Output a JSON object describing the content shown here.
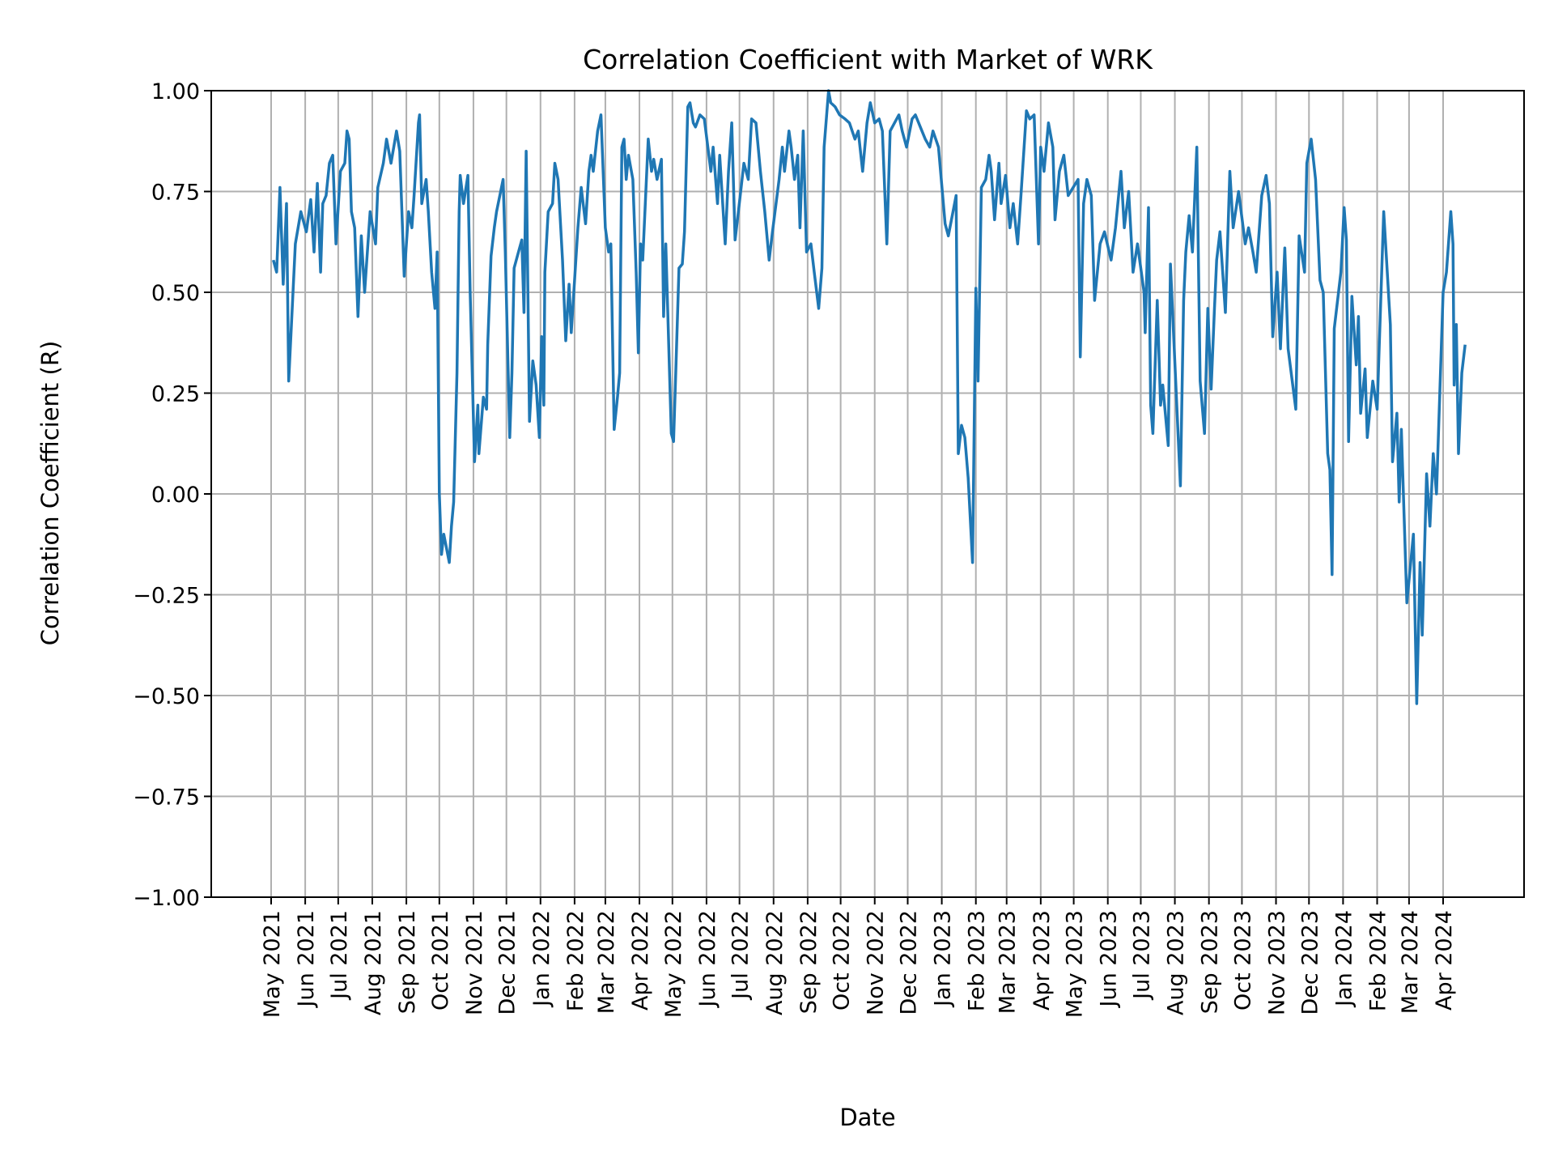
{
  "chart_data": {
    "type": "line",
    "title": "Correlation Coefficient with Market of WRK",
    "xlabel": "Date",
    "ylabel": "Correlation Coefficient (R)",
    "ylim": [
      -1.0,
      1.0
    ],
    "xlim": [
      "2021-04-01",
      "2024-05-31"
    ],
    "grid": true,
    "line_color": "#1f77b4",
    "yticks": [
      "−1.00",
      "−0.75",
      "−0.50",
      "−0.25",
      "0.00",
      "0.25",
      "0.50",
      "0.75",
      "1.00"
    ],
    "ytick_values": [
      -1,
      -0.75,
      -0.5,
      -0.25,
      0,
      0.25,
      0.5,
      0.75,
      1
    ],
    "xticks": [
      "May 2021",
      "Jun 2021",
      "Jul 2021",
      "Aug 2021",
      "Sep 2021",
      "Oct 2021",
      "Nov 2021",
      "Dec 2021",
      "Jan 2022",
      "Feb 2022",
      "Mar 2022",
      "Apr 2022",
      "May 2022",
      "Jun 2022",
      "Jul 2022",
      "Aug 2022",
      "Sep 2022",
      "Oct 2022",
      "Nov 2022",
      "Dec 2022",
      "Jan 2023",
      "Feb 2023",
      "Mar 2023",
      "Apr 2023",
      "May 2023",
      "Jun 2023",
      "Jul 2023",
      "Aug 2023",
      "Sep 2023",
      "Oct 2023",
      "Nov 2023",
      "Dec 2023",
      "Jan 2024",
      "Feb 2024",
      "Mar 2024",
      "Apr 2024"
    ],
    "points": [
      [
        "2021-05-03",
        0.58
      ],
      [
        "2021-05-06",
        0.55
      ],
      [
        "2021-05-09",
        0.76
      ],
      [
        "2021-05-12",
        0.52
      ],
      [
        "2021-05-15",
        0.72
      ],
      [
        "2021-05-17",
        0.28
      ],
      [
        "2021-05-23",
        0.62
      ],
      [
        "2021-05-28",
        0.7
      ],
      [
        "2021-06-02",
        0.65
      ],
      [
        "2021-06-06",
        0.73
      ],
      [
        "2021-06-09",
        0.6
      ],
      [
        "2021-06-12",
        0.77
      ],
      [
        "2021-06-15",
        0.55
      ],
      [
        "2021-06-17",
        0.72
      ],
      [
        "2021-06-20",
        0.74
      ],
      [
        "2021-06-23",
        0.82
      ],
      [
        "2021-06-26",
        0.84
      ],
      [
        "2021-06-29",
        0.62
      ],
      [
        "2021-07-03",
        0.8
      ],
      [
        "2021-07-07",
        0.82
      ],
      [
        "2021-07-09",
        0.9
      ],
      [
        "2021-07-11",
        0.88
      ],
      [
        "2021-07-13",
        0.7
      ],
      [
        "2021-07-16",
        0.66
      ],
      [
        "2021-07-19",
        0.44
      ],
      [
        "2021-07-22",
        0.64
      ],
      [
        "2021-07-25",
        0.5
      ],
      [
        "2021-07-27",
        0.58
      ],
      [
        "2021-07-30",
        0.7
      ],
      [
        "2021-08-04",
        0.62
      ],
      [
        "2021-08-06",
        0.76
      ],
      [
        "2021-08-11",
        0.82
      ],
      [
        "2021-08-14",
        0.88
      ],
      [
        "2021-08-18",
        0.82
      ],
      [
        "2021-08-23",
        0.9
      ],
      [
        "2021-08-26",
        0.85
      ],
      [
        "2021-08-30",
        0.54
      ],
      [
        "2021-09-03",
        0.7
      ],
      [
        "2021-09-06",
        0.66
      ],
      [
        "2021-09-08",
        0.74
      ],
      [
        "2021-09-12",
        0.92
      ],
      [
        "2021-09-13",
        0.94
      ],
      [
        "2021-09-15",
        0.72
      ],
      [
        "2021-09-19",
        0.78
      ],
      [
        "2021-09-21",
        0.7
      ],
      [
        "2021-09-24",
        0.55
      ],
      [
        "2021-09-27",
        0.46
      ],
      [
        "2021-09-29",
        0.6
      ],
      [
        "2021-10-01",
        0.0
      ],
      [
        "2021-10-03",
        -0.15
      ],
      [
        "2021-10-05",
        -0.1
      ],
      [
        "2021-10-10",
        -0.17
      ],
      [
        "2021-10-12",
        -0.08
      ],
      [
        "2021-10-14",
        -0.02
      ],
      [
        "2021-10-17",
        0.3
      ],
      [
        "2021-10-19",
        0.7
      ],
      [
        "2021-10-20",
        0.79
      ],
      [
        "2021-10-23",
        0.72
      ],
      [
        "2021-10-27",
        0.79
      ],
      [
        "2021-10-29",
        0.5
      ],
      [
        "2021-11-02",
        0.08
      ],
      [
        "2021-11-05",
        0.22
      ],
      [
        "2021-11-06",
        0.1
      ],
      [
        "2021-11-10",
        0.24
      ],
      [
        "2021-11-13",
        0.21
      ],
      [
        "2021-11-14",
        0.37
      ],
      [
        "2021-11-17",
        0.59
      ],
      [
        "2021-11-20",
        0.66
      ],
      [
        "2021-11-22",
        0.7
      ],
      [
        "2021-11-28",
        0.78
      ],
      [
        "2021-11-30",
        0.6
      ],
      [
        "2021-12-04",
        0.14
      ],
      [
        "2021-12-06",
        0.3
      ],
      [
        "2021-12-08",
        0.56
      ],
      [
        "2021-12-12",
        0.6
      ],
      [
        "2021-12-15",
        0.63
      ],
      [
        "2021-12-17",
        0.45
      ],
      [
        "2021-12-19",
        0.85
      ],
      [
        "2021-12-22",
        0.18
      ],
      [
        "2021-12-25",
        0.33
      ],
      [
        "2021-12-28",
        0.27
      ],
      [
        "2021-12-31",
        0.14
      ],
      [
        "2022-01-02",
        0.39
      ],
      [
        "2022-01-04",
        0.22
      ],
      [
        "2022-01-05",
        0.55
      ],
      [
        "2022-01-08",
        0.7
      ],
      [
        "2022-01-12",
        0.72
      ],
      [
        "2022-01-14",
        0.82
      ],
      [
        "2022-01-17",
        0.78
      ],
      [
        "2022-01-21",
        0.58
      ],
      [
        "2022-01-24",
        0.38
      ],
      [
        "2022-01-27",
        0.52
      ],
      [
        "2022-01-29",
        0.4
      ],
      [
        "2022-02-04",
        0.66
      ],
      [
        "2022-02-07",
        0.76
      ],
      [
        "2022-02-11",
        0.67
      ],
      [
        "2022-02-14",
        0.8
      ],
      [
        "2022-02-16",
        0.84
      ],
      [
        "2022-02-18",
        0.8
      ],
      [
        "2022-02-22",
        0.9
      ],
      [
        "2022-02-25",
        0.94
      ],
      [
        "2022-03-01",
        0.66
      ],
      [
        "2022-03-04",
        0.6
      ],
      [
        "2022-03-06",
        0.62
      ],
      [
        "2022-03-09",
        0.16
      ],
      [
        "2022-03-12",
        0.24
      ],
      [
        "2022-03-14",
        0.3
      ],
      [
        "2022-03-16",
        0.86
      ],
      [
        "2022-03-18",
        0.88
      ],
      [
        "2022-03-20",
        0.78
      ],
      [
        "2022-03-22",
        0.84
      ],
      [
        "2022-03-26",
        0.78
      ],
      [
        "2022-03-29",
        0.55
      ],
      [
        "2022-03-31",
        0.35
      ],
      [
        "2022-04-02",
        0.62
      ],
      [
        "2022-04-04",
        0.58
      ],
      [
        "2022-04-09",
        0.88
      ],
      [
        "2022-04-12",
        0.8
      ],
      [
        "2022-04-14",
        0.83
      ],
      [
        "2022-04-17",
        0.78
      ],
      [
        "2022-04-21",
        0.83
      ],
      [
        "2022-04-23",
        0.44
      ],
      [
        "2022-04-25",
        0.62
      ],
      [
        "2022-04-30",
        0.15
      ],
      [
        "2022-05-02",
        0.13
      ],
      [
        "2022-05-04",
        0.3
      ],
      [
        "2022-05-07",
        0.56
      ],
      [
        "2022-05-10",
        0.57
      ],
      [
        "2022-05-12",
        0.65
      ],
      [
        "2022-05-15",
        0.96
      ],
      [
        "2022-05-17",
        0.97
      ],
      [
        "2022-05-20",
        0.92
      ],
      [
        "2022-05-22",
        0.91
      ],
      [
        "2022-05-26",
        0.94
      ],
      [
        "2022-05-30",
        0.93
      ],
      [
        "2022-06-05",
        0.8
      ],
      [
        "2022-06-07",
        0.86
      ],
      [
        "2022-06-11",
        0.72
      ],
      [
        "2022-06-13",
        0.84
      ],
      [
        "2022-06-18",
        0.62
      ],
      [
        "2022-06-21",
        0.8
      ],
      [
        "2022-06-24",
        0.92
      ],
      [
        "2022-06-27",
        0.63
      ],
      [
        "2022-06-30",
        0.7
      ],
      [
        "2022-07-05",
        0.82
      ],
      [
        "2022-07-09",
        0.78
      ],
      [
        "2022-07-12",
        0.93
      ],
      [
        "2022-07-16",
        0.92
      ],
      [
        "2022-07-20",
        0.8
      ],
      [
        "2022-07-24",
        0.7
      ],
      [
        "2022-07-28",
        0.58
      ],
      [
        "2022-07-31",
        0.65
      ],
      [
        "2022-08-06",
        0.78
      ],
      [
        "2022-08-09",
        0.86
      ],
      [
        "2022-08-11",
        0.8
      ],
      [
        "2022-08-15",
        0.9
      ],
      [
        "2022-08-17",
        0.86
      ],
      [
        "2022-08-20",
        0.78
      ],
      [
        "2022-08-23",
        0.84
      ],
      [
        "2022-08-25",
        0.66
      ],
      [
        "2022-08-28",
        0.9
      ],
      [
        "2022-08-31",
        0.6
      ],
      [
        "2022-09-04",
        0.62
      ],
      [
        "2022-09-07",
        0.55
      ],
      [
        "2022-09-11",
        0.46
      ],
      [
        "2022-09-14",
        0.56
      ],
      [
        "2022-09-16",
        0.86
      ],
      [
        "2022-09-20",
        1.0
      ],
      [
        "2022-09-22",
        0.97
      ],
      [
        "2022-09-26",
        0.96
      ],
      [
        "2022-09-30",
        0.94
      ],
      [
        "2022-10-05",
        0.93
      ],
      [
        "2022-10-09",
        0.92
      ],
      [
        "2022-10-14",
        0.88
      ],
      [
        "2022-10-17",
        0.9
      ],
      [
        "2022-10-21",
        0.8
      ],
      [
        "2022-10-25",
        0.92
      ],
      [
        "2022-10-28",
        0.97
      ],
      [
        "2022-11-01",
        0.92
      ],
      [
        "2022-11-05",
        0.93
      ],
      [
        "2022-11-08",
        0.9
      ],
      [
        "2022-11-12",
        0.62
      ],
      [
        "2022-11-15",
        0.9
      ],
      [
        "2022-11-19",
        0.92
      ],
      [
        "2022-11-23",
        0.94
      ],
      [
        "2022-11-26",
        0.9
      ],
      [
        "2022-11-30",
        0.86
      ],
      [
        "2022-12-05",
        0.93
      ],
      [
        "2022-12-08",
        0.94
      ],
      [
        "2022-12-14",
        0.9
      ],
      [
        "2022-12-17",
        0.88
      ],
      [
        "2022-12-21",
        0.86
      ],
      [
        "2022-12-24",
        0.9
      ],
      [
        "2022-12-29",
        0.86
      ],
      [
        "2023-01-04",
        0.67
      ],
      [
        "2023-01-07",
        0.64
      ],
      [
        "2023-01-14",
        0.74
      ],
      [
        "2023-01-16",
        0.1
      ],
      [
        "2023-01-19",
        0.17
      ],
      [
        "2023-01-22",
        0.14
      ],
      [
        "2023-01-25",
        0.04
      ],
      [
        "2023-01-29",
        -0.17
      ],
      [
        "2023-02-01",
        0.51
      ],
      [
        "2023-02-03",
        0.28
      ],
      [
        "2023-02-06",
        0.76
      ],
      [
        "2023-02-10",
        0.78
      ],
      [
        "2023-02-13",
        0.84
      ],
      [
        "2023-02-15",
        0.8
      ],
      [
        "2023-02-18",
        0.68
      ],
      [
        "2023-02-22",
        0.82
      ],
      [
        "2023-02-24",
        0.72
      ],
      [
        "2023-02-28",
        0.79
      ],
      [
        "2023-03-04",
        0.66
      ],
      [
        "2023-03-07",
        0.72
      ],
      [
        "2023-03-11",
        0.62
      ],
      [
        "2023-03-14",
        0.74
      ],
      [
        "2023-03-19",
        0.95
      ],
      [
        "2023-03-22",
        0.93
      ],
      [
        "2023-03-26",
        0.94
      ],
      [
        "2023-03-30",
        0.62
      ],
      [
        "2023-04-01",
        0.86
      ],
      [
        "2023-04-04",
        0.8
      ],
      [
        "2023-04-08",
        0.92
      ],
      [
        "2023-04-12",
        0.86
      ],
      [
        "2023-04-14",
        0.68
      ],
      [
        "2023-04-18",
        0.8
      ],
      [
        "2023-04-22",
        0.84
      ],
      [
        "2023-04-26",
        0.74
      ],
      [
        "2023-05-05",
        0.78
      ],
      [
        "2023-05-07",
        0.34
      ],
      [
        "2023-05-10",
        0.72
      ],
      [
        "2023-05-13",
        0.78
      ],
      [
        "2023-05-17",
        0.74
      ],
      [
        "2023-05-20",
        0.48
      ],
      [
        "2023-05-25",
        0.62
      ],
      [
        "2023-05-29",
        0.65
      ],
      [
        "2023-06-04",
        0.58
      ],
      [
        "2023-06-08",
        0.66
      ],
      [
        "2023-06-13",
        0.8
      ],
      [
        "2023-06-16",
        0.66
      ],
      [
        "2023-06-20",
        0.75
      ],
      [
        "2023-06-24",
        0.55
      ],
      [
        "2023-06-28",
        0.62
      ],
      [
        "2023-07-04",
        0.5
      ],
      [
        "2023-07-05",
        0.4
      ],
      [
        "2023-07-08",
        0.71
      ],
      [
        "2023-07-10",
        0.22
      ],
      [
        "2023-07-12",
        0.15
      ],
      [
        "2023-07-16",
        0.48
      ],
      [
        "2023-07-19",
        0.22
      ],
      [
        "2023-07-21",
        0.27
      ],
      [
        "2023-07-26",
        0.12
      ],
      [
        "2023-07-28",
        0.57
      ],
      [
        "2023-08-06",
        0.02
      ],
      [
        "2023-08-09",
        0.48
      ],
      [
        "2023-08-11",
        0.6
      ],
      [
        "2023-08-14",
        0.69
      ],
      [
        "2023-08-17",
        0.6
      ],
      [
        "2023-08-21",
        0.86
      ],
      [
        "2023-08-24",
        0.28
      ],
      [
        "2023-08-28",
        0.15
      ],
      [
        "2023-08-31",
        0.46
      ],
      [
        "2023-09-03",
        0.26
      ],
      [
        "2023-09-06",
        0.46
      ],
      [
        "2023-09-08",
        0.58
      ],
      [
        "2023-09-11",
        0.65
      ],
      [
        "2023-09-16",
        0.45
      ],
      [
        "2023-09-20",
        0.8
      ],
      [
        "2023-09-23",
        0.66
      ],
      [
        "2023-09-28",
        0.75
      ],
      [
        "2023-10-04",
        0.62
      ],
      [
        "2023-10-07",
        0.66
      ],
      [
        "2023-10-11",
        0.6
      ],
      [
        "2023-10-14",
        0.55
      ],
      [
        "2023-10-19",
        0.74
      ],
      [
        "2023-10-23",
        0.79
      ],
      [
        "2023-10-26",
        0.72
      ],
      [
        "2023-10-29",
        0.39
      ],
      [
        "2023-11-02",
        0.55
      ],
      [
        "2023-11-05",
        0.36
      ],
      [
        "2023-11-09",
        0.61
      ],
      [
        "2023-11-12",
        0.36
      ],
      [
        "2023-11-19",
        0.21
      ],
      [
        "2023-11-22",
        0.64
      ],
      [
        "2023-11-27",
        0.55
      ],
      [
        "2023-11-29",
        0.82
      ],
      [
        "2023-12-03",
        0.88
      ],
      [
        "2023-12-07",
        0.78
      ],
      [
        "2023-12-11",
        0.53
      ],
      [
        "2023-12-14",
        0.5
      ],
      [
        "2023-12-18",
        0.1
      ],
      [
        "2023-12-20",
        0.06
      ],
      [
        "2023-12-22",
        -0.2
      ],
      [
        "2023-12-24",
        0.41
      ],
      [
        "2023-12-27",
        0.48
      ],
      [
        "2023-12-30",
        0.55
      ],
      [
        "2024-01-02",
        0.71
      ],
      [
        "2024-01-04",
        0.63
      ],
      [
        "2024-01-06",
        0.13
      ],
      [
        "2024-01-09",
        0.49
      ],
      [
        "2024-01-13",
        0.32
      ],
      [
        "2024-01-15",
        0.44
      ],
      [
        "2024-01-17",
        0.2
      ],
      [
        "2024-01-21",
        0.31
      ],
      [
        "2024-01-23",
        0.14
      ],
      [
        "2024-01-28",
        0.28
      ],
      [
        "2024-02-01",
        0.21
      ],
      [
        "2024-02-07",
        0.7
      ],
      [
        "2024-02-13",
        0.42
      ],
      [
        "2024-02-15",
        0.08
      ],
      [
        "2024-02-19",
        0.2
      ],
      [
        "2024-02-21",
        -0.02
      ],
      [
        "2024-02-23",
        0.16
      ],
      [
        "2024-02-28",
        -0.27
      ],
      [
        "2024-03-05",
        -0.1
      ],
      [
        "2024-03-08",
        -0.52
      ],
      [
        "2024-03-11",
        -0.17
      ],
      [
        "2024-03-13",
        -0.35
      ],
      [
        "2024-03-17",
        0.05
      ],
      [
        "2024-03-20",
        -0.08
      ],
      [
        "2024-03-23",
        0.1
      ],
      [
        "2024-03-26",
        0.0
      ],
      [
        "2024-04-01",
        0.5
      ],
      [
        "2024-04-04",
        0.55
      ],
      [
        "2024-04-08",
        0.7
      ],
      [
        "2024-04-10",
        0.62
      ],
      [
        "2024-04-11",
        0.27
      ],
      [
        "2024-04-13",
        0.42
      ],
      [
        "2024-04-15",
        0.1
      ],
      [
        "2024-04-18",
        0.3
      ],
      [
        "2024-04-21",
        0.37
      ]
    ]
  }
}
